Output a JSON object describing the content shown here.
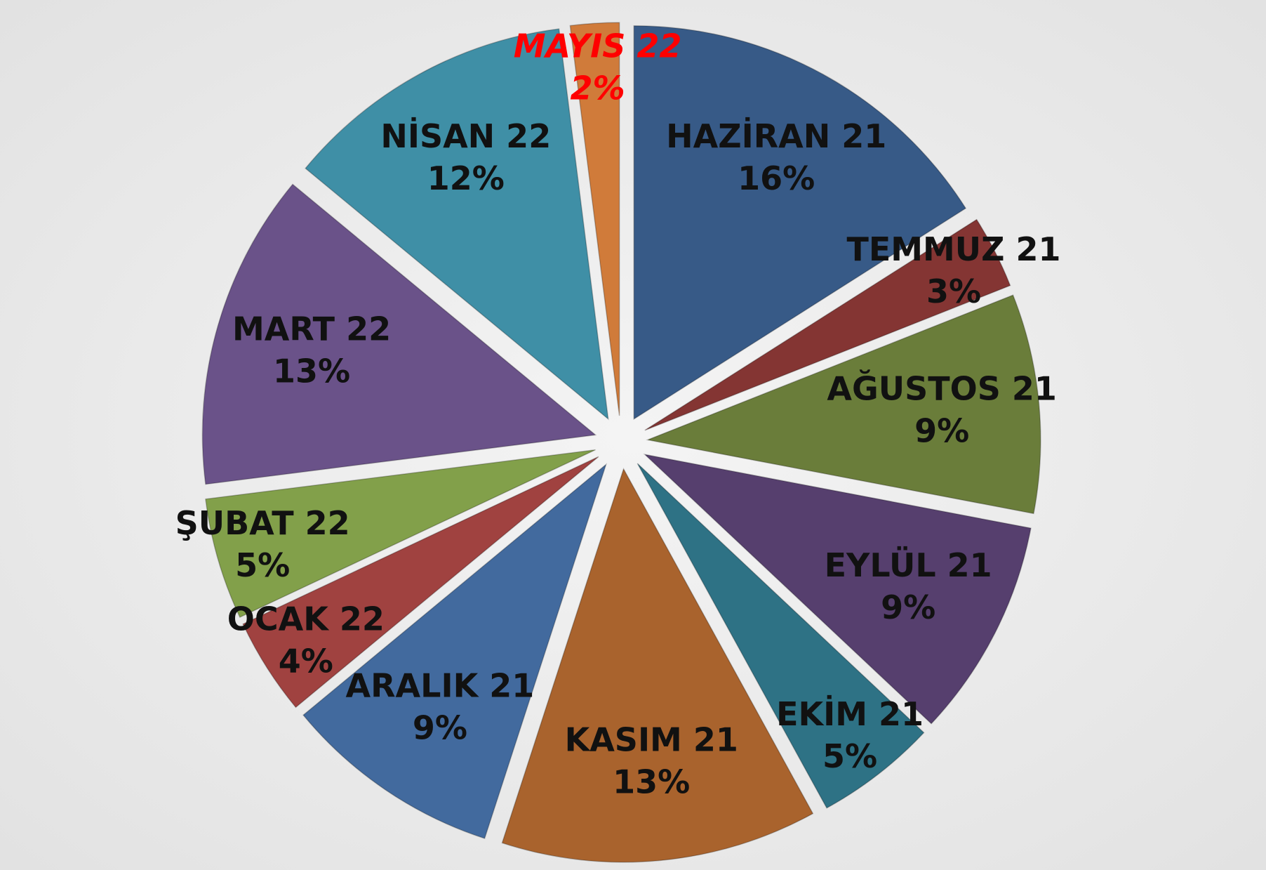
{
  "chart_data": {
    "type": "pie",
    "categories": [
      "HAZİRAN 21",
      "TEMMUZ 21",
      "AĞUSTOS 21",
      "EYLÜL 21",
      "EKİM 21",
      "KASIM 21",
      "ARALIK 21",
      "OCAK 22",
      "ŞUBAT 22",
      "MART 22",
      "NİSAN 22",
      "MAYIS 22"
    ],
    "values": [
      16,
      3,
      9,
      9,
      5,
      13,
      9,
      4,
      5,
      13,
      12,
      2
    ],
    "value_labels": [
      "16%",
      "3%",
      "9%",
      "9%",
      "5%",
      "13%",
      "9%",
      "4%",
      "5%",
      "13%",
      "12%",
      "2%"
    ],
    "colors": [
      "#375a87",
      "#843533",
      "#6a7d3a",
      "#563f6e",
      "#2e7285",
      "#a9632d",
      "#426a9e",
      "#a04240",
      "#82a04a",
      "#6a5289",
      "#3f8fa6",
      "#d07b3a"
    ],
    "label_colors": [
      "#111",
      "#111",
      "#111",
      "#111",
      "#111",
      "#111",
      "#111",
      "#111",
      "#111",
      "#111",
      "#111",
      "#ff0000"
    ]
  }
}
